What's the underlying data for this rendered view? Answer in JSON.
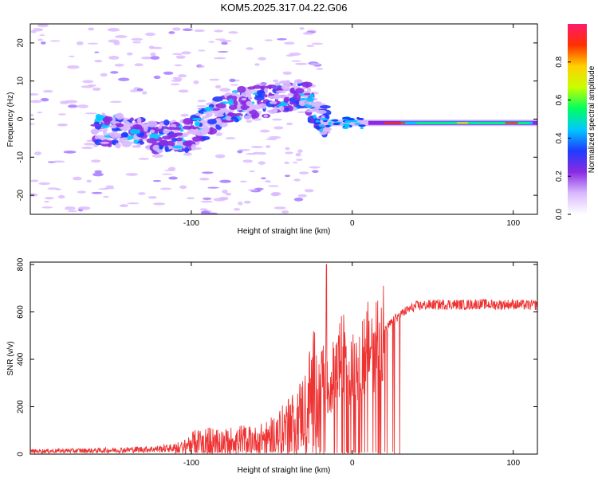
{
  "title": "KOM5.2025.317.04.22.G06",
  "chart_data": [
    {
      "type": "heatmap",
      "xlabel": "Height of straight line (km)",
      "ylabel": "Frequency (Hz)",
      "xlim": [
        -200,
        115
      ],
      "ylim": [
        -25,
        25
      ],
      "xticks": [
        -100,
        0,
        100
      ],
      "yticks": [
        -20,
        -10,
        0,
        10,
        20
      ],
      "xtick_labels": [
        "-100",
        "0",
        "100"
      ],
      "ytick_labels": [
        "-20",
        "-10",
        "0",
        "10",
        "20"
      ],
      "colorbar": {
        "label": "Normalized spectral amplitude",
        "range": [
          0,
          1
        ],
        "ticks": [
          "0.0",
          "0.2",
          "0.4",
          "0.6",
          "0.8"
        ],
        "colors": [
          "#ffffff",
          "#d9b8ff",
          "#8a2be2",
          "#1f3bff",
          "#00c8ff",
          "#00ff60",
          "#c8ff00",
          "#ffd000",
          "#ff3000",
          "#ff1a6e"
        ]
      },
      "description_trend": [
        {
          "x": -145,
          "f": -3
        },
        {
          "x": -120,
          "f": -5
        },
        {
          "x": -100,
          "f": -4
        },
        {
          "x": -85,
          "f": 1
        },
        {
          "x": -70,
          "f": 4
        },
        {
          "x": -50,
          "f": 5
        },
        {
          "x": -30,
          "f": 7
        },
        {
          "x": -20,
          "f": 0
        },
        {
          "x": 0,
          "f": -1
        },
        {
          "x": 50,
          "f": -1
        },
        {
          "x": 115,
          "f": -1
        }
      ]
    },
    {
      "type": "line",
      "xlabel": "Height of straight line (km)",
      "ylabel": "SNR (v/v)",
      "xlim": [
        -200,
        115
      ],
      "ylim": [
        0,
        810
      ],
      "xticks": [
        -100,
        0,
        100
      ],
      "yticks": [
        0,
        200,
        400,
        600,
        800
      ],
      "xtick_labels": [
        "-100",
        "0",
        "100"
      ],
      "ytick_labels": [
        "0",
        "200",
        "400",
        "600",
        "800"
      ],
      "color": "#ee3333",
      "series": [
        {
          "name": "SNR",
          "x": [
            -200,
            -180,
            -160,
            -140,
            -120,
            -105,
            -100,
            -90,
            -80,
            -70,
            -60,
            -50,
            -40,
            -30,
            -25,
            -20,
            -17,
            -15,
            -10,
            -5,
            0,
            5,
            10,
            15,
            20,
            25,
            30,
            35,
            40,
            50,
            60,
            70,
            80,
            90,
            100,
            110,
            115
          ],
          "values": [
            12,
            14,
            15,
            18,
            22,
            28,
            50,
            60,
            55,
            65,
            60,
            80,
            120,
            180,
            260,
            320,
            350,
            250,
            380,
            420,
            350,
            420,
            450,
            480,
            520,
            560,
            590,
            610,
            625,
            630,
            632,
            630,
            633,
            630,
            632,
            628,
            630
          ]
        }
      ],
      "spike": {
        "x": -16,
        "value": 800
      }
    }
  ]
}
